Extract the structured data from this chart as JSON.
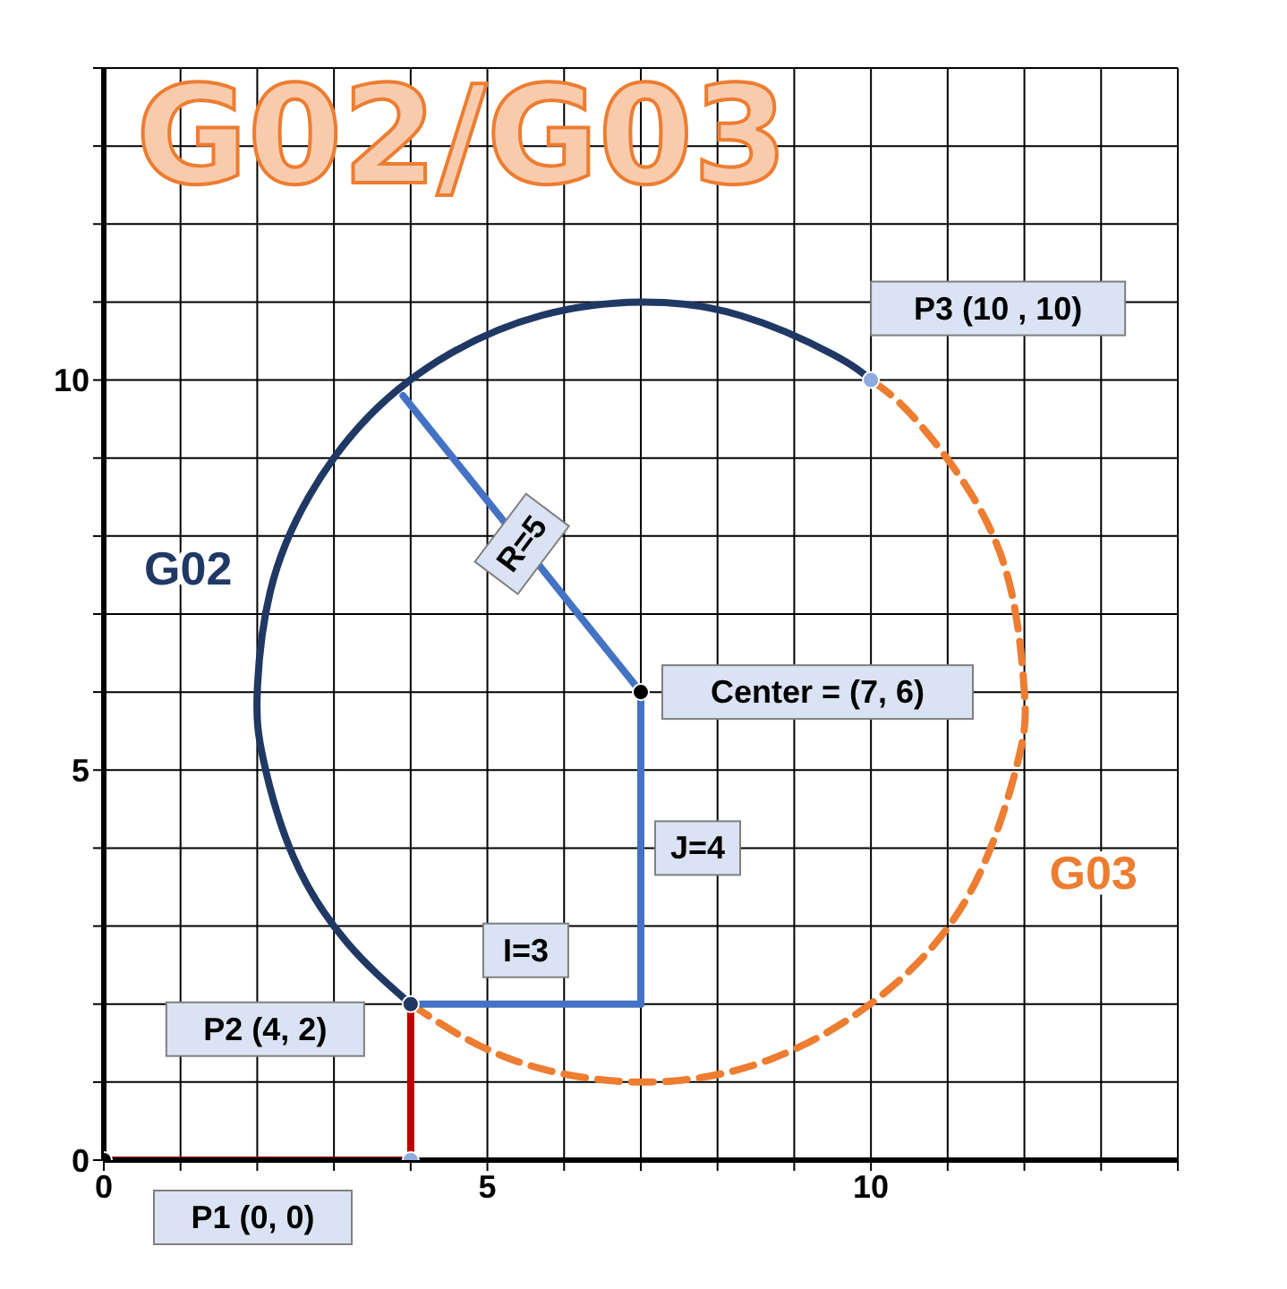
{
  "chart_data": {
    "type": "line",
    "title": "G02/G03",
    "xlim": [
      0,
      14
    ],
    "ylim": [
      0,
      14
    ],
    "xticks": [
      0,
      {
        "value": 1,
        "label": null
      },
      {
        "value": 2,
        "label": null
      },
      {
        "value": 3,
        "label": null
      },
      {
        "value": 4,
        "label": null
      },
      5,
      {
        "value": 6,
        "label": null
      },
      {
        "value": 7,
        "label": null
      },
      {
        "value": 8,
        "label": null
      },
      {
        "value": 9,
        "label": null
      },
      10,
      {
        "value": 11,
        "label": null
      },
      {
        "value": 12,
        "label": null
      },
      {
        "value": 13,
        "label": null
      },
      {
        "value": 14,
        "label": null
      }
    ],
    "yticks": [
      0,
      {
        "value": 1,
        "label": null
      },
      {
        "value": 2,
        "label": null
      },
      {
        "value": 3,
        "label": null
      },
      {
        "value": 4,
        "label": null
      },
      5,
      {
        "value": 6,
        "label": null
      },
      {
        "value": 7,
        "label": null
      },
      {
        "value": 8,
        "label": null
      },
      {
        "value": 9,
        "label": null
      },
      10,
      {
        "value": 11,
        "label": null
      },
      {
        "value": 12,
        "label": null
      },
      {
        "value": 13,
        "label": null
      },
      {
        "value": 14,
        "label": null
      }
    ],
    "grid": true,
    "series": [
      {
        "name": "G02",
        "color": "#203864",
        "line_style": "solid",
        "marker": "none",
        "x": [
          4,
          3.17,
          2.47,
          2.08,
          2,
          2.17,
          2.67,
          3.46,
          4.5,
          5.71,
          7,
          8.29,
          9.5,
          10
        ],
        "values": [
          2,
          2.79,
          3.89,
          5.13,
          6,
          7.29,
          8.5,
          9.54,
          10.33,
          10.83,
          11,
          10.83,
          10.33,
          10
        ]
      },
      {
        "name": "G03",
        "color": "#ed7d31",
        "line_style": "dashed",
        "marker": "none",
        "x": [
          4,
          5.29,
          7,
          8.71,
          10.21,
          11.33,
          11.92,
          12,
          11.83,
          11.33,
          10.54,
          10
        ],
        "values": [
          2,
          1.3,
          1,
          1.3,
          2.17,
          3.5,
          5.13,
          6,
          7.29,
          8.5,
          9.54,
          10
        ]
      },
      {
        "type": "line",
        "color": "#c00000",
        "line_style": "solid",
        "marker": "none",
        "x": [
          0,
          4,
          4
        ],
        "values": [
          0,
          0,
          2
        ]
      },
      {
        "type": "line",
        "color": "#4472c4",
        "line_style": "solid",
        "marker": "none",
        "x": [
          4,
          7
        ],
        "values": [
          2,
          2
        ]
      },
      {
        "type": "line",
        "color": "#4472c4",
        "line_style": "solid",
        "marker": "none",
        "x": [
          7,
          7
        ],
        "values": [
          2,
          6
        ]
      },
      {
        "type": "line",
        "color": "#4472c4",
        "line_style": "solid",
        "marker": "none",
        "x": [
          7,
          3.9
        ],
        "values": [
          6,
          9.8
        ]
      },
      {
        "type": "scatter",
        "marker": "circle",
        "x": [
          0,
          4,
          4,
          7,
          10
        ],
        "values": [
          0,
          0,
          2,
          6,
          10
        ],
        "colors": [
          "#000000",
          "#8faadc",
          "#203864",
          "#000000",
          "#8faadc"
        ]
      }
    ],
    "annotations": [
      {
        "text": "P1 (0, 0)",
        "x": 0,
        "y": 0
      },
      {
        "text": "P2 (4, 2)",
        "x": 4,
        "y": 2
      },
      {
        "text": "P3 (10 , 10)",
        "x": 10,
        "y": 10
      },
      {
        "text": "Center = (7, 6)",
        "x": 7,
        "y": 6
      },
      {
        "text": "R=5",
        "x": 5.45,
        "y": 7.9
      },
      {
        "text": "I=3",
        "x": 5.5,
        "y": 2
      },
      {
        "text": "J=4",
        "x": 7,
        "y": 4
      }
    ]
  }
}
